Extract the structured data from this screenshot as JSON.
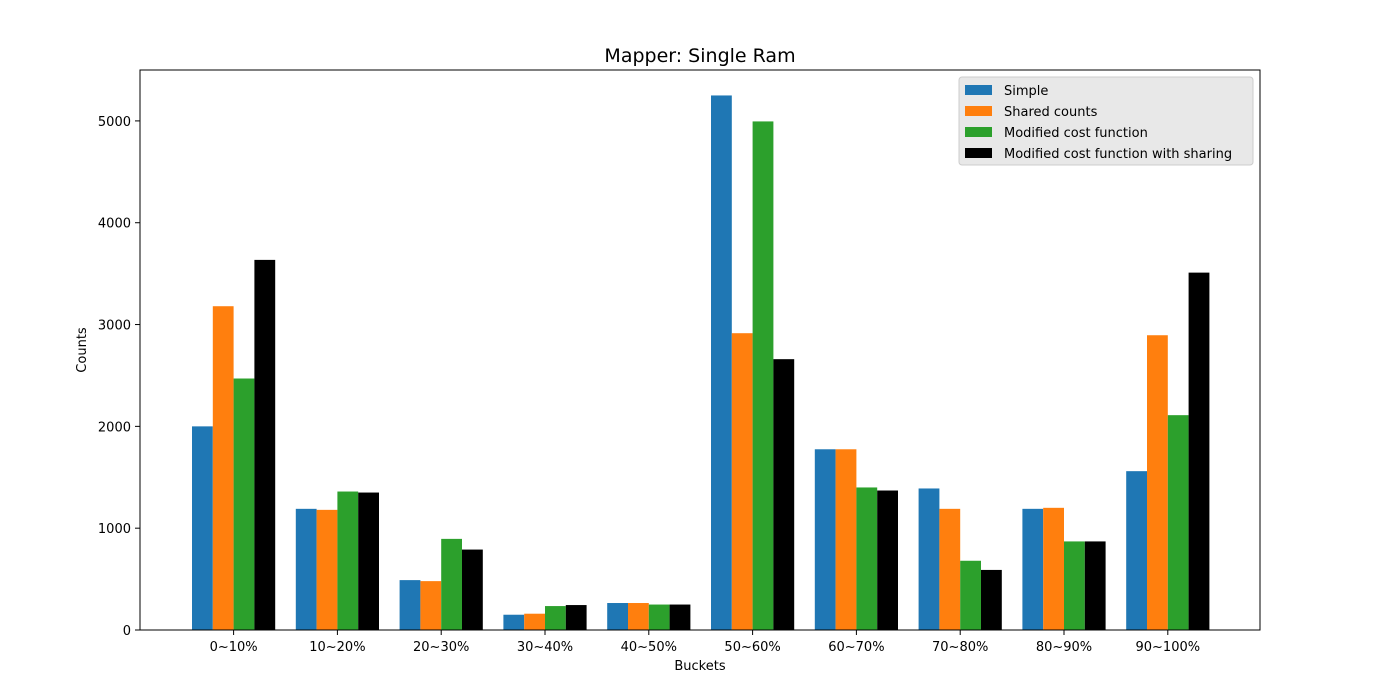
{
  "chart_data": {
    "type": "bar",
    "title": "Mapper: Single Ram",
    "xlabel": "Buckets",
    "ylabel": "Counts",
    "ylim": [
      0,
      5500
    ],
    "yticks": [
      0,
      1000,
      2000,
      3000,
      4000,
      5000
    ],
    "grid": false,
    "legend_position": "top-right",
    "categories": [
      "0~10%",
      "10~20%",
      "20~30%",
      "30~40%",
      "40~50%",
      "50~60%",
      "60~70%",
      "70~80%",
      "80~90%",
      "90~100%"
    ],
    "series": [
      {
        "name": "Simple",
        "color": "#1f77b4",
        "values": [
          2000,
          1190,
          490,
          150,
          265,
          5250,
          1775,
          1390,
          1190,
          1560
        ]
      },
      {
        "name": "Shared counts",
        "color": "#ff7f0e",
        "values": [
          3180,
          1180,
          480,
          160,
          265,
          2915,
          1775,
          1190,
          1200,
          2895
        ]
      },
      {
        "name": "Modified cost function",
        "color": "#2ca02c",
        "values": [
          2470,
          1360,
          895,
          235,
          250,
          4995,
          1400,
          680,
          870,
          2110
        ]
      },
      {
        "name": "Modified cost function with sharing",
        "color": "#000000",
        "values": [
          3635,
          1350,
          790,
          245,
          250,
          2660,
          1370,
          590,
          870,
          3510
        ]
      }
    ]
  }
}
